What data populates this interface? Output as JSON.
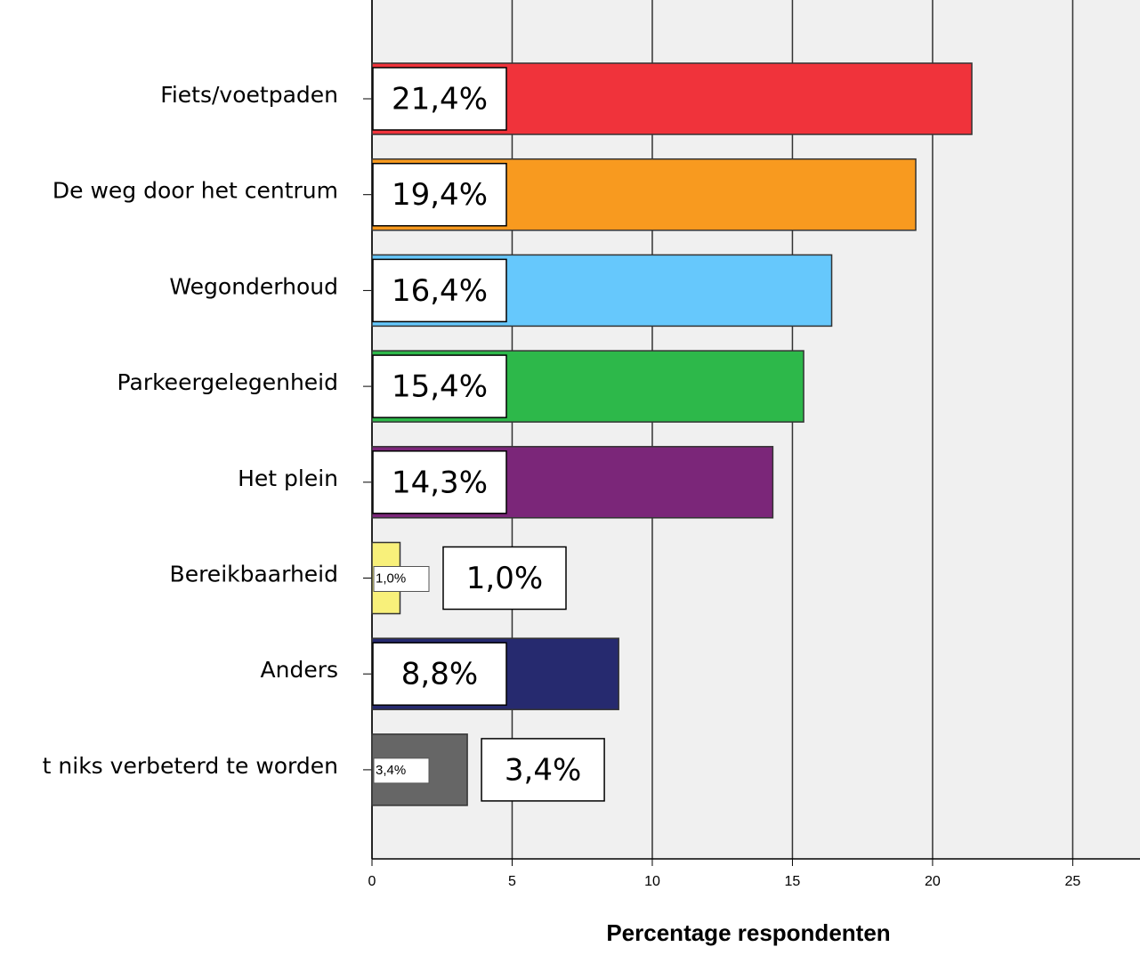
{
  "chart_data": {
    "type": "hbar",
    "x_label": "Percentage respondenten",
    "categories": [
      "Fiets/voetpaden",
      "De weg door het centrum",
      "Wegonderhoud",
      "Parkeergelegenheid",
      "Het plein",
      "Bereikbaarheid",
      "Anders",
      "t niks verbeterd te worden"
    ],
    "values": [
      21.4,
      19.4,
      16.4,
      15.4,
      14.3,
      1.0,
      8.8,
      3.4
    ],
    "value_labels": [
      "21,4%",
      "19,4%",
      "16,4%",
      "15,4%",
      "14,3%",
      "1,0%",
      "8,8%",
      "3,4%"
    ],
    "colors": [
      "#f0333b",
      "#f89a1f",
      "#66c8fc",
      "#2db84a",
      "#7b2679",
      "#f8f07a",
      "#262a6f",
      "#666666"
    ],
    "xlim": [
      0,
      27.4
    ],
    "xticks": [
      0,
      5,
      10,
      15,
      20,
      25
    ],
    "grid": true
  }
}
